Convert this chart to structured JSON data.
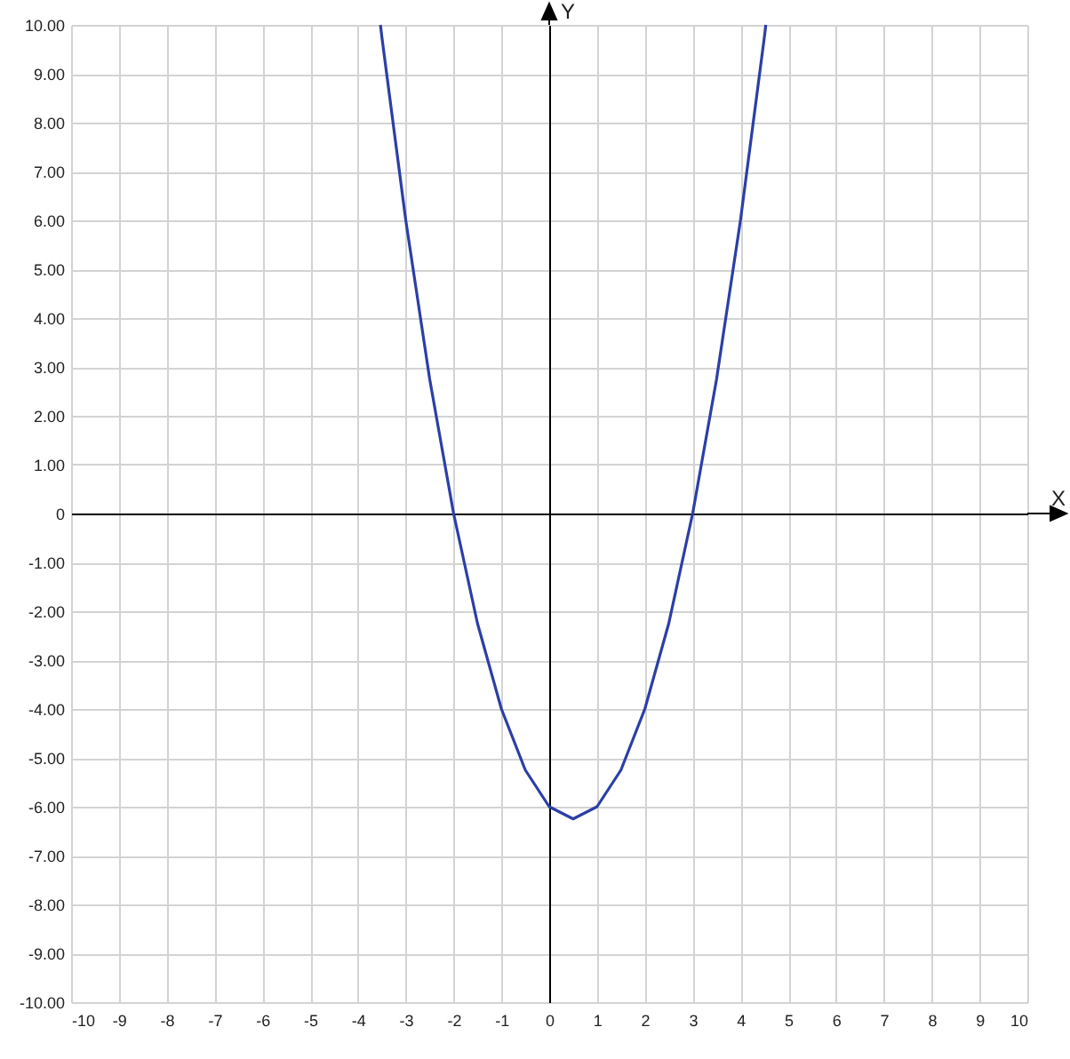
{
  "chart_data": {
    "type": "line",
    "xlabel": "X",
    "ylabel": "Y",
    "x": [
      -3.53,
      -3.5,
      -3,
      -2.5,
      -2,
      -1.5,
      -1,
      -0.5,
      0,
      0.5,
      1,
      1.5,
      2,
      2.5,
      3,
      3.5,
      4,
      4.5,
      4.53
    ],
    "series": [
      {
        "color": "#2b3fa6",
        "values": [
          10,
          9.75,
          6,
          2.75,
          0,
          -2.25,
          -4,
          -5.25,
          -6,
          -6.25,
          -6,
          -5.25,
          -4,
          -2.25,
          0,
          2.75,
          6,
          9.75,
          10
        ]
      }
    ],
    "xlim": [
      -10,
      10
    ],
    "ylim": [
      -10,
      10
    ],
    "xticks": [
      -10,
      -9,
      -8,
      -7,
      -6,
      -5,
      -4,
      -3,
      -2,
      -1,
      0,
      1,
      2,
      3,
      4,
      5,
      6,
      7,
      8,
      9,
      10
    ],
    "yticks": [
      {
        "value": -10,
        "label": "-10.00"
      },
      {
        "value": -9,
        "label": "-9.00"
      },
      {
        "value": -8,
        "label": "-8.00"
      },
      {
        "value": -7,
        "label": "-7.00"
      },
      {
        "value": -6,
        "label": "-6.00"
      },
      {
        "value": -5,
        "label": "-5.00"
      },
      {
        "value": -4,
        "label": "-4.00"
      },
      {
        "value": -3,
        "label": "-3.00"
      },
      {
        "value": -2,
        "label": "-2.00"
      },
      {
        "value": -1,
        "label": "-1.00"
      },
      {
        "value": 0,
        "label": "0"
      },
      {
        "value": 1,
        "label": "1.00"
      },
      {
        "value": 2,
        "label": "2.00"
      },
      {
        "value": 3,
        "label": "3.00"
      },
      {
        "value": 4,
        "label": "4.00"
      },
      {
        "value": 5,
        "label": "5.00"
      },
      {
        "value": 6,
        "label": "6.00"
      },
      {
        "value": 7,
        "label": "7.00"
      },
      {
        "value": 8,
        "label": "8.00"
      },
      {
        "value": 9,
        "label": "9.00"
      },
      {
        "value": 10,
        "label": "10.00"
      }
    ],
    "grid": true,
    "marker": "none",
    "line_style": "solid"
  }
}
